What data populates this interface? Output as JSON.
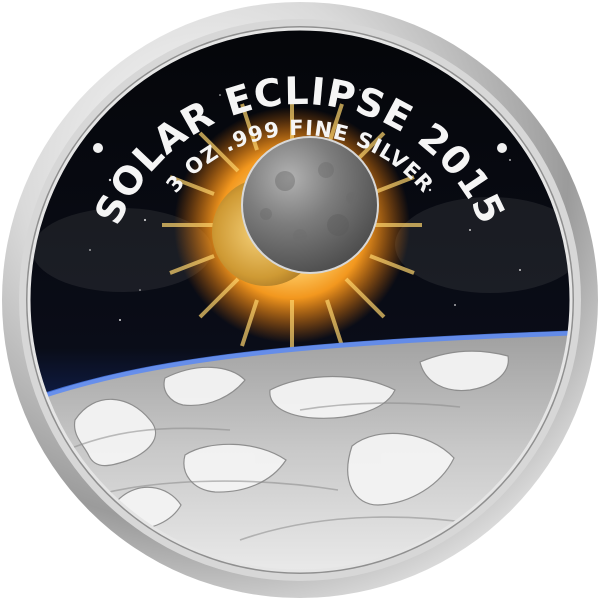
{
  "coin": {
    "title": "SOLAR ECLIPSE 2015",
    "subtitle": "3 OZ .999 FINE SILVER",
    "decorations": [
      "left-dot",
      "right-dot"
    ],
    "colors": {
      "rim_light": "#f4f4f4",
      "rim_mid": "#c9c9c9",
      "rim_dark": "#8d8d8d",
      "space": "#05070c",
      "atmosphere": "#1d3a9a",
      "sun_core": "#fff6c8",
      "sun_glow": "#ff9a1a",
      "moon_gray": "#7c7c7c",
      "moon_gold": "#d6a13b",
      "earth_silver": "#bdbdbd",
      "earth_highlight": "#f2f2f2",
      "text": "#f5f5f5"
    }
  }
}
